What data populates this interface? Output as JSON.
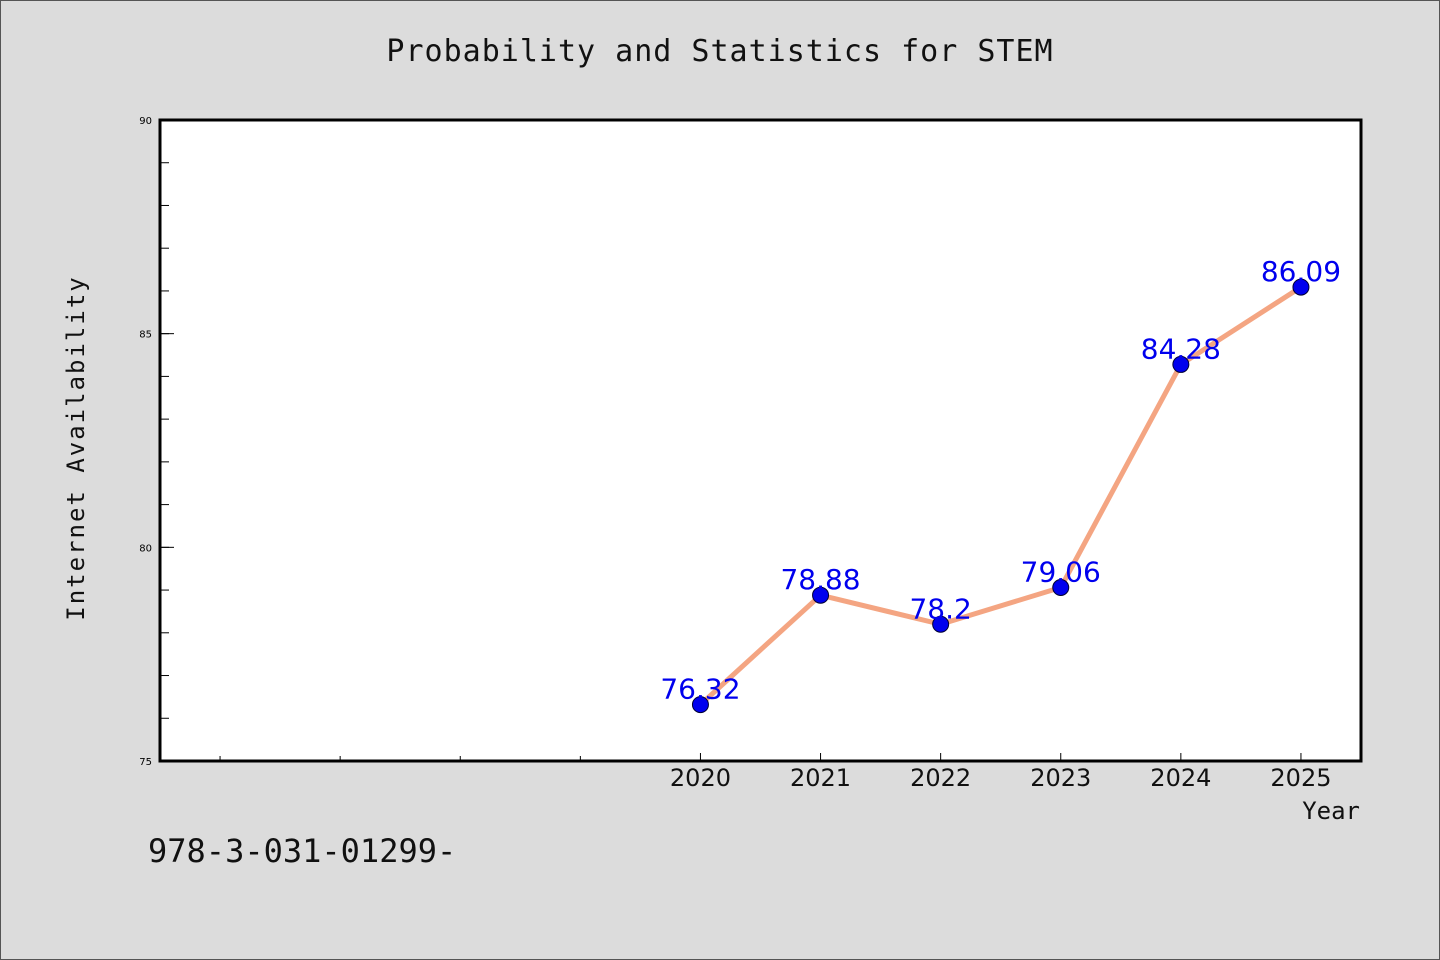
{
  "chart_data": {
    "type": "line",
    "title": "Probability and Statistics for STEM",
    "xlabel": "Year",
    "ylabel": "Internet Availability",
    "x": [
      2020,
      2021,
      2022,
      2023,
      2024,
      2025
    ],
    "x_tick_labels": [
      "2020",
      "2021",
      "2022",
      "2023",
      "2024",
      "2025"
    ],
    "xlim": [
      2015.5,
      2025.5
    ],
    "ylim": [
      75,
      90
    ],
    "y_ticks": [
      75,
      80,
      85,
      90
    ],
    "y_tick_labels": [
      "75",
      "80",
      "85",
      "90"
    ],
    "series": [
      {
        "values": [
          76.32,
          78.88,
          78.2,
          79.06,
          84.28,
          86.09
        ],
        "data_labels": [
          "76.32",
          "78.88",
          "78.2",
          "79.06",
          "84.28",
          "86.09"
        ],
        "line_color": "#f4a582",
        "marker_color": "#0000ee",
        "label_color": "#0000ee"
      }
    ],
    "grid": false,
    "legend": "none"
  },
  "footnote": "978-3-031-01299-"
}
